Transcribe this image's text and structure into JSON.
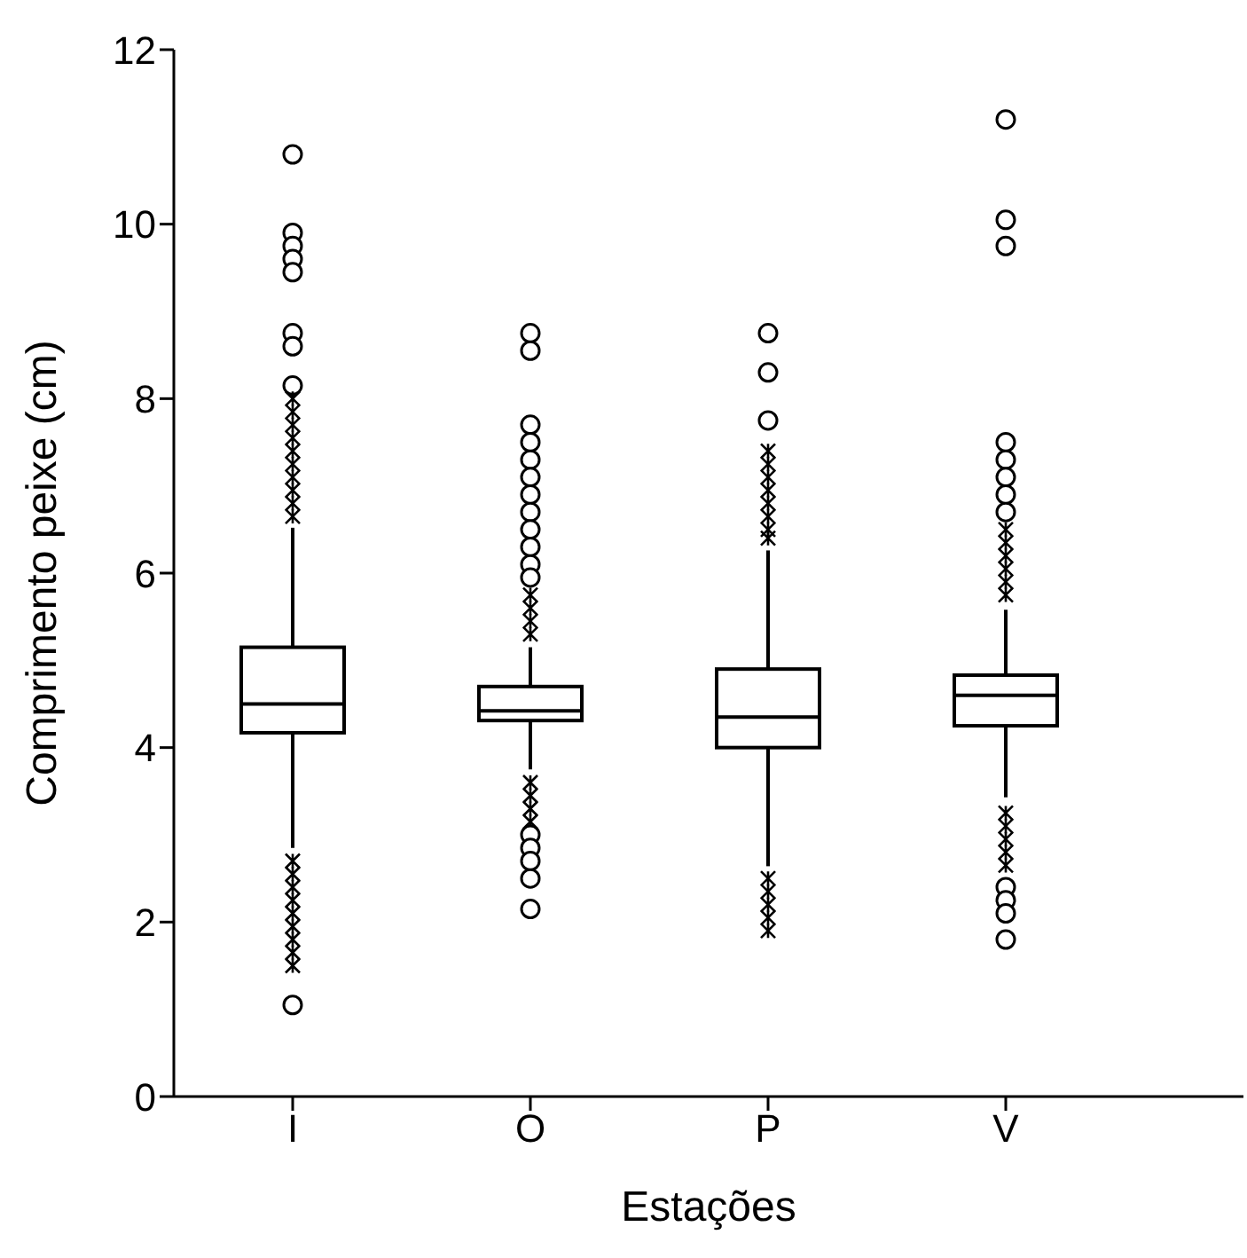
{
  "chart_data": {
    "type": "box",
    "xlabel": "Estações",
    "ylabel": "Comprimento peixe (cm)",
    "categories": [
      "I",
      "O",
      "P",
      "V"
    ],
    "ylim": [
      0,
      12
    ],
    "yticks": [
      0,
      2,
      4,
      6,
      8,
      10,
      12
    ],
    "boxes": [
      {
        "low": 2.85,
        "q1": 4.17,
        "median": 4.5,
        "q3": 5.15,
        "high": 6.52,
        "outliers": [
          10.8,
          9.9,
          9.75,
          9.6,
          9.45,
          8.75,
          8.6,
          8.15,
          8.0,
          7.85,
          7.7,
          7.55,
          7.4,
          7.25,
          7.1,
          6.95,
          6.8,
          6.65,
          2.7,
          2.55,
          2.4,
          2.25,
          2.1,
          1.95,
          1.8,
          1.65,
          1.5,
          1.05
        ]
      },
      {
        "low": 3.75,
        "q1": 4.31,
        "median": 4.42,
        "q3": 4.7,
        "high": 5.15,
        "outliers": [
          8.75,
          8.55,
          7.7,
          7.5,
          7.3,
          7.1,
          6.9,
          6.7,
          6.5,
          6.3,
          6.1,
          5.95,
          5.75,
          5.6,
          5.45,
          5.3,
          3.6,
          3.45,
          3.3,
          3.15,
          3.0,
          2.85,
          2.7,
          2.5,
          2.15
        ]
      },
      {
        "low": 2.64,
        "q1": 4.0,
        "median": 4.35,
        "q3": 4.9,
        "high": 6.26,
        "outliers": [
          8.75,
          8.3,
          7.75,
          7.4,
          7.25,
          7.1,
          6.95,
          6.8,
          6.65,
          6.5,
          6.4,
          2.5,
          2.35,
          2.2,
          2.05,
          1.9
        ]
      },
      {
        "low": 3.43,
        "q1": 4.25,
        "median": 4.6,
        "q3": 4.83,
        "high": 5.58,
        "outliers": [
          11.2,
          10.05,
          9.75,
          7.5,
          7.3,
          7.1,
          6.9,
          6.7,
          6.5,
          6.35,
          6.2,
          6.05,
          5.9,
          5.75,
          3.25,
          3.1,
          2.95,
          2.8,
          2.65,
          2.4,
          2.25,
          2.1,
          1.8
        ]
      }
    ]
  }
}
